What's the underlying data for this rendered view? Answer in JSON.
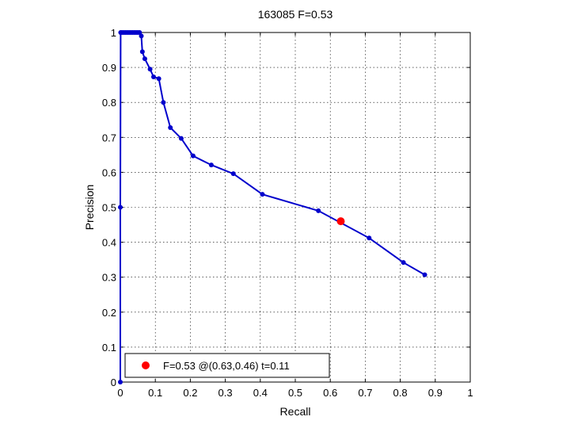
{
  "chart_data": {
    "type": "line",
    "title": "163085 F=0.53",
    "xlabel": "Recall",
    "ylabel": "Precision",
    "xlim": [
      0,
      1
    ],
    "ylim": [
      0,
      1
    ],
    "grid": true,
    "xticks": [
      "0",
      "0.1",
      "0.2",
      "0.3",
      "0.4",
      "0.5",
      "0.6",
      "0.7",
      "0.8",
      "0.9",
      "1"
    ],
    "yticks": [
      "0",
      "0.1",
      "0.2",
      "0.3",
      "0.4",
      "0.5",
      "0.6",
      "0.7",
      "0.8",
      "0.9",
      "1"
    ],
    "series": [
      {
        "color": "#0000cc",
        "x": [
          0,
          0,
          0.001,
          0.005,
          0.01,
          0.015,
          0.02,
          0.025,
          0.03,
          0.035,
          0.04,
          0.045,
          0.05,
          0.055,
          0.06,
          0.063,
          0.07,
          0.085,
          0.095,
          0.11,
          0.123,
          0.143,
          0.174,
          0.208,
          0.26,
          0.323,
          0.406,
          0.566,
          0.711,
          0.809,
          0.87
        ],
        "y": [
          0,
          0.5,
          1,
          1,
          1,
          1,
          1,
          1,
          1,
          1,
          1,
          1,
          1,
          1,
          0.99,
          0.945,
          0.925,
          0.895,
          0.873,
          0.868,
          0.8,
          0.728,
          0.697,
          0.647,
          0.621,
          0.596,
          0.537,
          0.49,
          0.412,
          0.342,
          0.307
        ]
      }
    ],
    "best_point": {
      "x": 0.63,
      "y": 0.46,
      "color": "#ff0000"
    },
    "legend": {
      "position": "bottom-left",
      "label": "F=0.53 @(0.63,0.46) t=0.11"
    }
  }
}
